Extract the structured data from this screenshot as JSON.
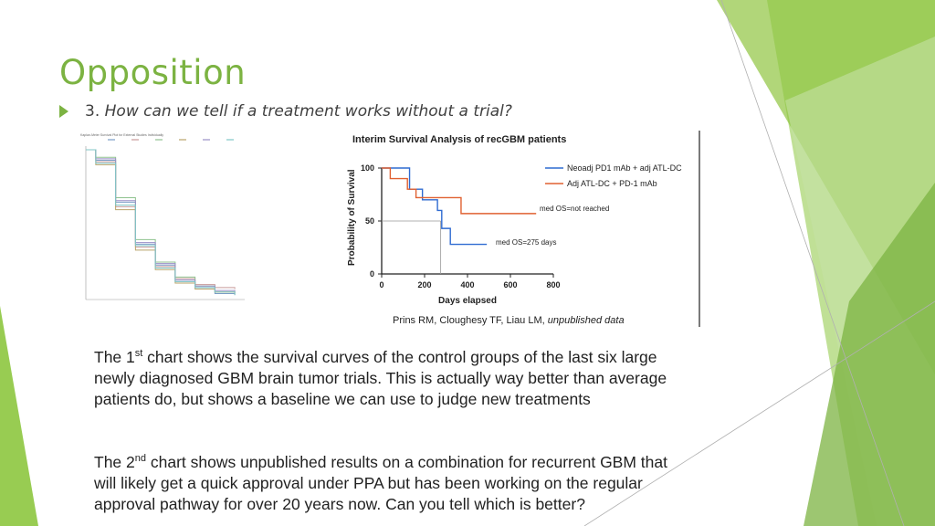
{
  "slide": {
    "title": "Opposition",
    "bullet_number": "3.",
    "bullet_question": "How can we tell if a treatment works without a trial?",
    "accent_color": "#7cb342",
    "paragraph1": {
      "a": "The 1",
      "sup": "st",
      "b": " chart shows the survival curves of the control groups of the last six large newly diagnosed GBM brain tumor trials.  This is actually way better than average patients do,  but shows a baseline we can use to judge new treatments"
    },
    "paragraph2": {
      "a": "The 2",
      "sup": "nd",
      "b": " chart shows unpublished results on a combination for recurrent GBM that will likely get a quick approval under PPA but has been working on the regular approval pathway for over 20 years now.   Can you tell which is better?"
    }
  },
  "chart_data": [
    {
      "type": "line",
      "title": "Kaplan-Meier Survival Plot for External Studies Individually",
      "legend": [
        "",
        "",
        "",
        "",
        "",
        ""
      ],
      "series": [
        {
          "color": "#7a9cc6",
          "x": [
            0,
            10,
            30,
            50,
            70,
            90,
            110,
            130,
            150
          ],
          "y": [
            1.0,
            0.93,
            0.65,
            0.37,
            0.23,
            0.12,
            0.08,
            0.04,
            0.03
          ]
        },
        {
          "color": "#c79a9a",
          "x": [
            0,
            10,
            30,
            50,
            70,
            90,
            110,
            130,
            150
          ],
          "y": [
            1.0,
            0.92,
            0.62,
            0.35,
            0.22,
            0.14,
            0.1,
            0.08,
            0.07
          ]
        },
        {
          "color": "#8fc28f",
          "x": [
            0,
            10,
            30,
            50,
            70,
            90,
            110,
            130,
            150
          ],
          "y": [
            1.0,
            0.95,
            0.68,
            0.4,
            0.25,
            0.15,
            0.09,
            0.05,
            0.04
          ]
        },
        {
          "color": "#b9a36a",
          "x": [
            0,
            10,
            30,
            50,
            70,
            90,
            110,
            130,
            150
          ],
          "y": [
            1.0,
            0.9,
            0.6,
            0.33,
            0.2,
            0.11,
            0.07,
            0.05,
            0.04
          ]
        },
        {
          "color": "#9a8fc6",
          "x": [
            0,
            10,
            30,
            50,
            70,
            90,
            110,
            130,
            150
          ],
          "y": [
            1.0,
            0.94,
            0.66,
            0.38,
            0.24,
            0.13,
            0.09,
            0.06,
            0.05
          ]
        },
        {
          "color": "#7fc6c6",
          "x": [
            0,
            10,
            30,
            50,
            70,
            90,
            110,
            130,
            150
          ],
          "y": [
            1.0,
            0.91,
            0.63,
            0.36,
            0.21,
            0.12,
            0.08,
            0.05,
            0.03
          ]
        }
      ],
      "xlim": [
        0,
        160
      ],
      "ylim": [
        0,
        1
      ]
    },
    {
      "type": "line",
      "title": "Interim Survival Analysis of recGBM patients",
      "xlabel": "Days elapsed",
      "ylabel": "Probability of Survival",
      "x_ticks": [
        "0",
        "200",
        "400",
        "600",
        "800"
      ],
      "y_ticks": [
        "0",
        "50",
        "100"
      ],
      "xlim": [
        0,
        800
      ],
      "ylim": [
        0,
        100
      ],
      "series": [
        {
          "name": "Neoadj PD1 mAb + adj ATL-DC",
          "color": "#2f6bd1",
          "step_x": [
            0,
            60,
            60,
            130,
            130,
            190,
            190,
            260,
            260,
            280,
            280,
            320,
            320,
            490
          ],
          "step_y": [
            100,
            100,
            100,
            100,
            80,
            80,
            70,
            70,
            60,
            60,
            43,
            43,
            28,
            28
          ]
        },
        {
          "name": "Adj ATL-DC + PD-1 mAb",
          "color": "#e06030",
          "step_x": [
            0,
            40,
            40,
            120,
            120,
            160,
            160,
            250,
            250,
            370,
            370,
            720
          ],
          "step_y": [
            100,
            100,
            90,
            90,
            80,
            80,
            72,
            72,
            72,
            72,
            57,
            57
          ]
        }
      ],
      "annotations": [
        "med OS=not reached",
        "med OS=275 days"
      ],
      "reference_x": 275,
      "reference_y": 50,
      "credit": "Prins RM, Cloughesy TF, Liau LM,",
      "credit_italic": "unpublished data"
    }
  ]
}
